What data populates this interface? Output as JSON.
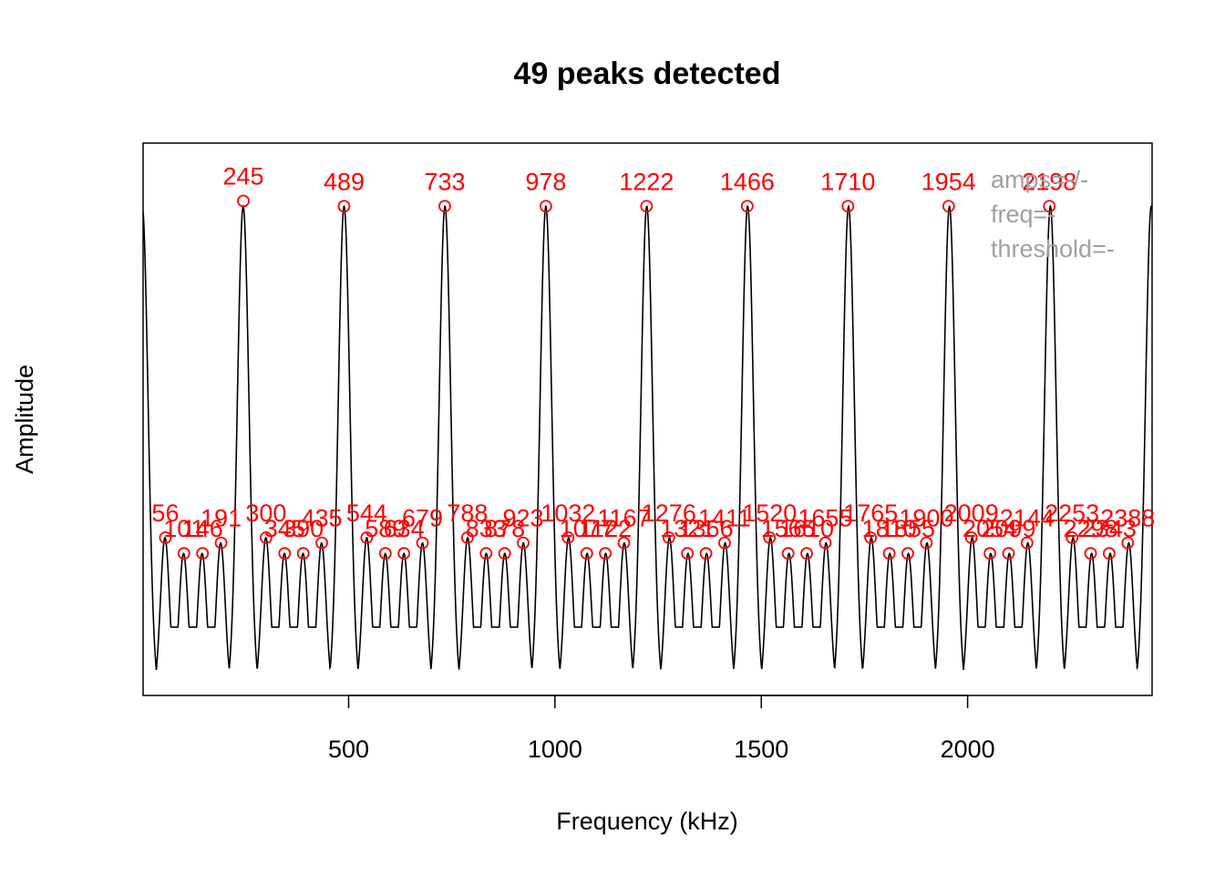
{
  "chart_data": {
    "type": "line",
    "title": "49 peaks detected",
    "xlabel": "Frequency (kHz)",
    "ylabel": "Amplitude",
    "xlim": [
      2,
      2447
    ],
    "ylim": [
      0,
      1.05
    ],
    "x_ticks": [
      500,
      1000,
      1500,
      2000
    ],
    "x_tick_labels": [
      "500",
      "1000",
      "1500",
      "2000"
    ],
    "grid": false,
    "legend": "none",
    "colors": {
      "line": "#000000",
      "peaks": "#ff0000",
      "annotation": "#a0a0a0"
    },
    "spectrum": {
      "period": 244.5,
      "main_amplitude": 0.93,
      "sidelobe_amplitudes": [
        0.3,
        0.27,
        0.27,
        0.29
      ],
      "trough_level": 0.05
    },
    "peaks": [
      {
        "freq": 56,
        "label": "56",
        "amp": 0.3
      },
      {
        "freq": 101,
        "label": "101",
        "amp": 0.27
      },
      {
        "freq": 146,
        "label": "146",
        "amp": 0.27
      },
      {
        "freq": 191,
        "label": "191",
        "amp": 0.29
      },
      {
        "freq": 245,
        "label": "245",
        "amp": 0.94
      },
      {
        "freq": 300,
        "label": "300",
        "amp": 0.3
      },
      {
        "freq": 345,
        "label": "345",
        "amp": 0.27
      },
      {
        "freq": 390,
        "label": "390",
        "amp": 0.27
      },
      {
        "freq": 435,
        "label": "435",
        "amp": 0.29
      },
      {
        "freq": 489,
        "label": "489",
        "amp": 0.93
      },
      {
        "freq": 544,
        "label": "544",
        "amp": 0.3
      },
      {
        "freq": 589,
        "label": "589",
        "amp": 0.27
      },
      {
        "freq": 634,
        "label": "634",
        "amp": 0.27
      },
      {
        "freq": 679,
        "label": "679",
        "amp": 0.29
      },
      {
        "freq": 733,
        "label": "733",
        "amp": 0.93
      },
      {
        "freq": 788,
        "label": "788",
        "amp": 0.3
      },
      {
        "freq": 833,
        "label": "833",
        "amp": 0.27
      },
      {
        "freq": 878,
        "label": "878",
        "amp": 0.27
      },
      {
        "freq": 923,
        "label": "923",
        "amp": 0.29
      },
      {
        "freq": 978,
        "label": "978",
        "amp": 0.93
      },
      {
        "freq": 1032,
        "label": "1032",
        "amp": 0.3
      },
      {
        "freq": 1077,
        "label": "1077",
        "amp": 0.27
      },
      {
        "freq": 1122,
        "label": "1122",
        "amp": 0.27
      },
      {
        "freq": 1167,
        "label": "1167",
        "amp": 0.29
      },
      {
        "freq": 1222,
        "label": "1222",
        "amp": 0.93
      },
      {
        "freq": 1276,
        "label": "1276",
        "amp": 0.3
      },
      {
        "freq": 1321,
        "label": "1321",
        "amp": 0.27
      },
      {
        "freq": 1366,
        "label": "1366",
        "amp": 0.27
      },
      {
        "freq": 1411,
        "label": "1411",
        "amp": 0.29
      },
      {
        "freq": 1466,
        "label": "1466",
        "amp": 0.93
      },
      {
        "freq": 1520,
        "label": "1520",
        "amp": 0.3
      },
      {
        "freq": 1565,
        "label": "1565",
        "amp": 0.27
      },
      {
        "freq": 1610,
        "label": "1610",
        "amp": 0.27
      },
      {
        "freq": 1655,
        "label": "1655",
        "amp": 0.29
      },
      {
        "freq": 1710,
        "label": "1710",
        "amp": 0.93
      },
      {
        "freq": 1765,
        "label": "1765",
        "amp": 0.3
      },
      {
        "freq": 1810,
        "label": "1810",
        "amp": 0.27
      },
      {
        "freq": 1855,
        "label": "1855",
        "amp": 0.27
      },
      {
        "freq": 1900,
        "label": "1900",
        "amp": 0.29
      },
      {
        "freq": 1954,
        "label": "1954",
        "amp": 0.93
      },
      {
        "freq": 2009,
        "label": "2009",
        "amp": 0.3
      },
      {
        "freq": 2054,
        "label": "2054",
        "amp": 0.27
      },
      {
        "freq": 2099,
        "label": "2099",
        "amp": 0.27
      },
      {
        "freq": 2144,
        "label": "2144",
        "amp": 0.29
      },
      {
        "freq": 2198,
        "label": "2198",
        "amp": 0.93
      },
      {
        "freq": 2253,
        "label": "2253",
        "amp": 0.3
      },
      {
        "freq": 2298,
        "label": "2298",
        "amp": 0.27
      },
      {
        "freq": 2343,
        "label": "2343",
        "amp": 0.27
      },
      {
        "freq": 2388,
        "label": "2388",
        "amp": 0.29
      }
    ],
    "annotations": [
      "amps=-/-",
      "freq=-",
      "threshold=-"
    ]
  }
}
